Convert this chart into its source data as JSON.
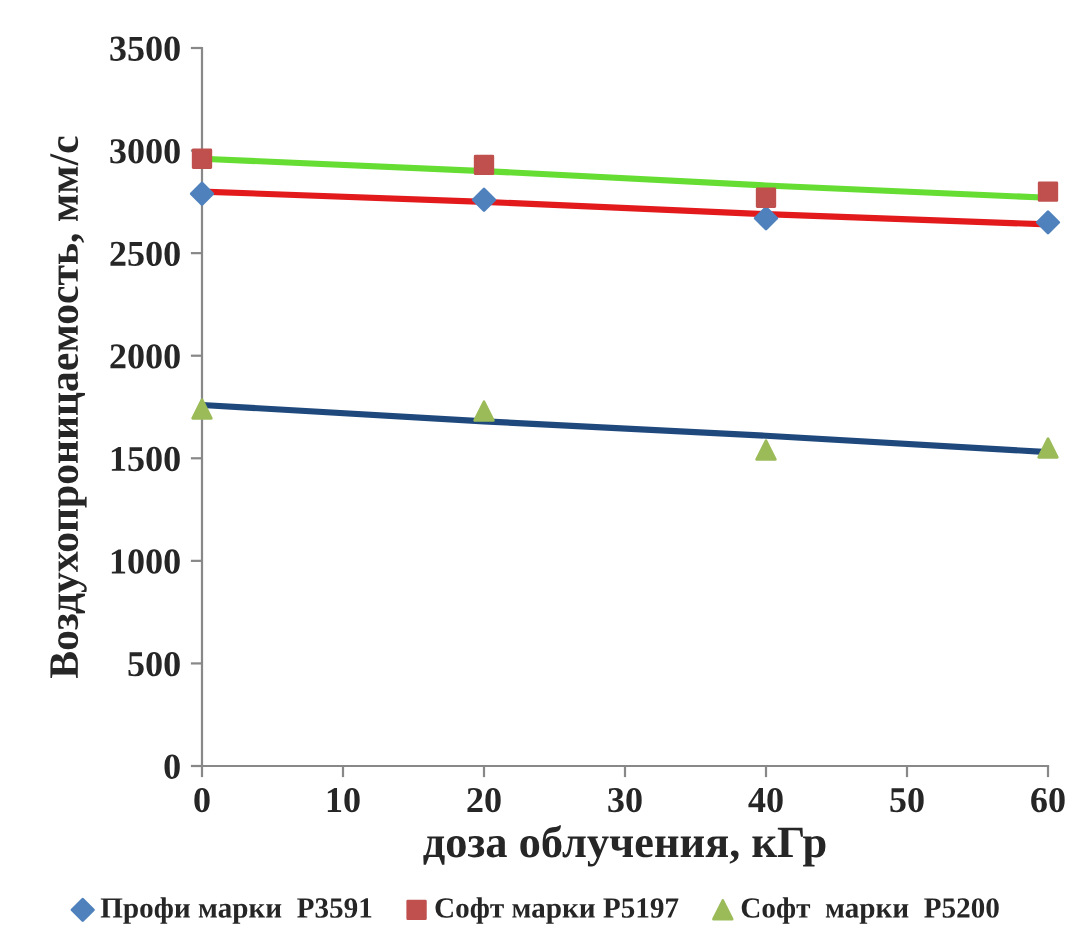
{
  "chart_data": {
    "type": "scatter",
    "xlabel": "доза облучения, кГр",
    "ylabel": "Воздухопроницаемость, мм/с",
    "x": [
      0,
      20,
      40,
      60
    ],
    "series": [
      {
        "name": "Профи марки  P3591",
        "color": "#4f81bd",
        "marker": "diamond",
        "values": [
          2790,
          2760,
          2670,
          2650
        ]
      },
      {
        "name": "Софт марки P5197",
        "color": "#c0504d",
        "marker": "square",
        "values": [
          2960,
          2930,
          2770,
          2800
        ]
      },
      {
        "name": "Софт  марки  P5200",
        "color": "#9bbb59",
        "marker": "triangle",
        "values": [
          1740,
          1730,
          1540,
          1550
        ]
      },
      {
        "type": "line",
        "color": "#1f497d",
        "marker": "none",
        "values": [
          1760,
          1680,
          1610,
          1530
        ]
      },
      {
        "type": "line",
        "color": "#e31a1c",
        "marker": "none",
        "values": [
          2800,
          2750,
          2690,
          2640
        ]
      },
      {
        "type": "line",
        "color": "#66dd33",
        "marker": "none",
        "values": [
          2960,
          2900,
          2830,
          2770
        ]
      }
    ],
    "xlim": [
      0,
      60
    ],
    "xticks": [
      0,
      10,
      20,
      30,
      40,
      50,
      60
    ],
    "ylim": [
      0,
      3500
    ],
    "yticks": [
      0,
      500,
      1000,
      1500,
      2000,
      2500,
      3000,
      3500
    ],
    "grid": false,
    "legend": "bottom"
  }
}
